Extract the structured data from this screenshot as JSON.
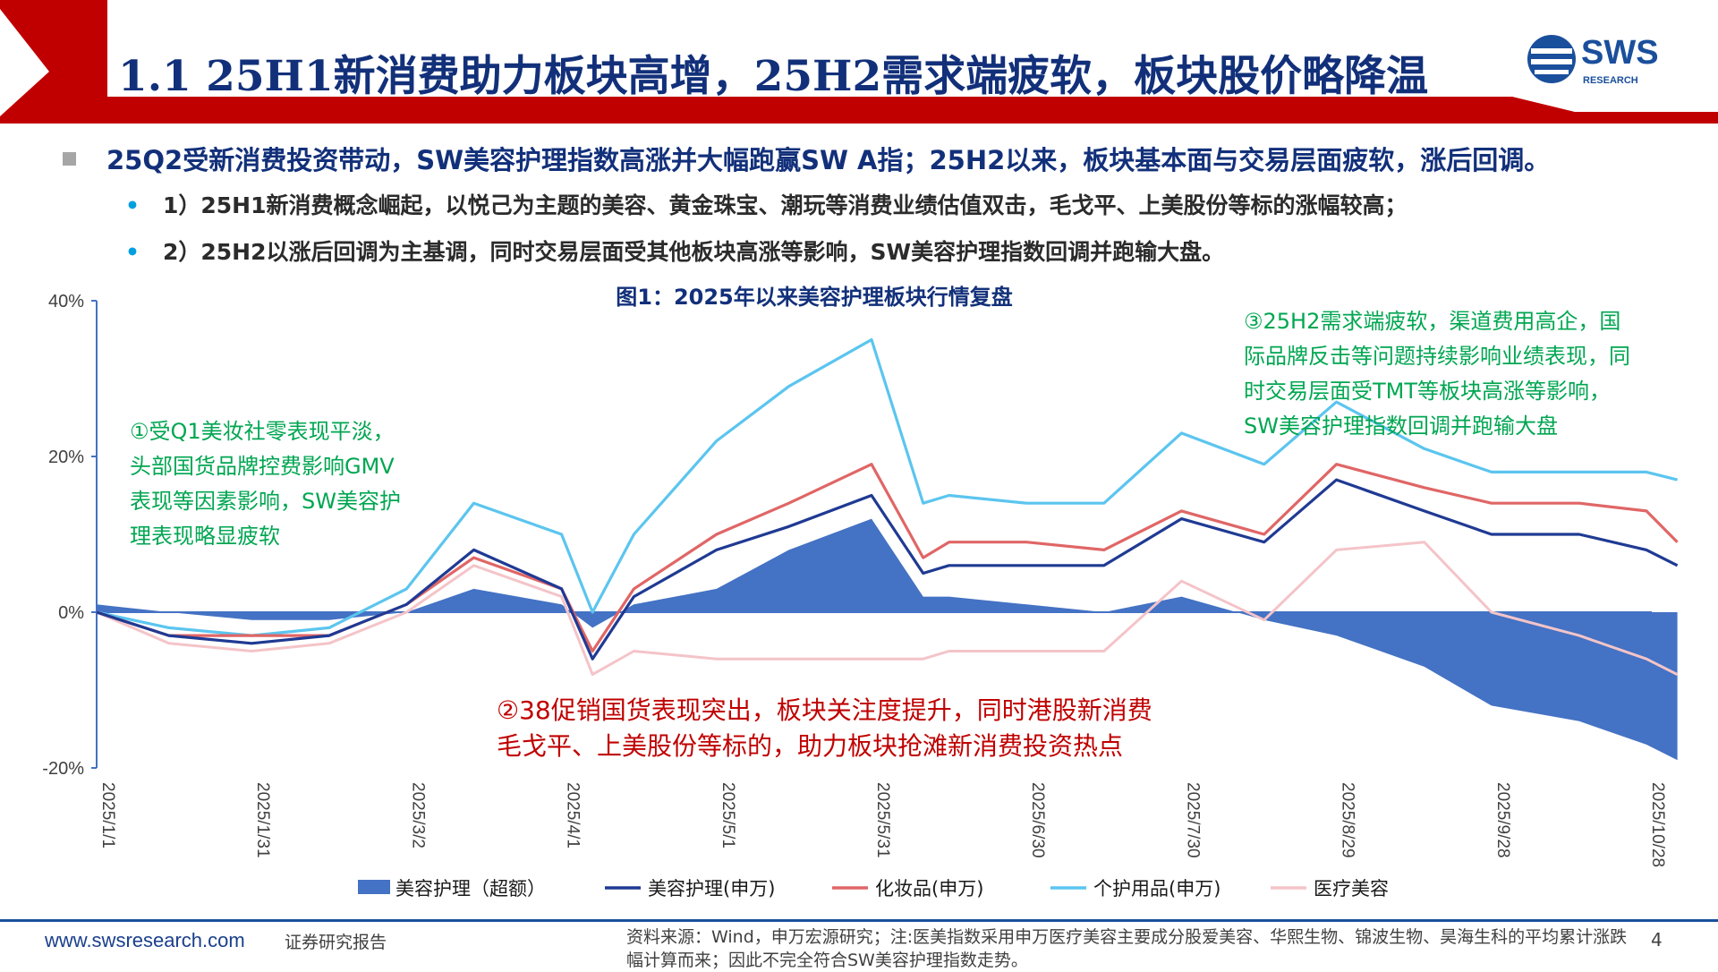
{
  "header": {
    "title": "1.1 25H1新消费助力板块高增，25H2需求端疲软，板块股价略降温",
    "logo_word": "SWS",
    "logo_sub": "RESEARCH"
  },
  "bullets": {
    "main": "25Q2受新消费投资带动，SW美容护理指数高涨并大幅跑赢SW A指；25H2以来，板块基本面与交易层面疲软，涨后回调。",
    "sub1": "1）25H1新消费概念崛起，以悦己为主题的美容、黄金珠宝、潮玩等消费业绩估值双击，毛戈平、上美股份等标的涨幅较高；",
    "sub2": "2）25H2以涨后回调为主基调，同时交易层面受其他板块高涨等影响，SW美容护理指数回调并跑输大盘。",
    "bullet_glyph": "•"
  },
  "annotations": {
    "a1": [
      "①受Q1美妆社零表现平淡，",
      "头部国货品牌控费影响GMV",
      "表现等因素影响，SW美容护",
      "理表现略显疲软"
    ],
    "a2": [
      "②38促销国货表现突出，板块关注度提升，同时港股新消费",
      "毛戈平、上美股份等标的，助力板块抢滩新消费投资热点"
    ],
    "a3": [
      "③25H2需求端疲软，渠道费用高企，国",
      "际品牌反击等问题持续影响业绩表现，同",
      "时交易层面受TMT等板块高涨等影响，",
      "SW美容护理指数回调并跑输大盘"
    ]
  },
  "footer": {
    "site": "www.swsresearch.com",
    "report": "证券研究报告",
    "source": "资料来源：Wind，申万宏源研究；注:医美指数采用申万医疗美容主要成分股爱美容、华熙生物、锦波生物、昊海生科的平均累计涨跌幅计算而来；因此不完全符合SW美容护理指数走势。",
    "page": "4"
  },
  "colors": {
    "excess": "#4472c4",
    "beauty": "#1f3a93",
    "cosmetics": "#e06666",
    "personal": "#5bc5ef",
    "medical": "#f4c4c8",
    "title": "#12307a",
    "banner": "#c00000"
  },
  "chart_data": {
    "type": "line",
    "title": "图1：2025年以来美容护理板块行情复盘",
    "y_unit": "%",
    "ylim": [
      -20,
      40
    ],
    "yticks": [
      40,
      20,
      0,
      -20
    ],
    "ytick_labels": [
      "40%",
      "20%",
      "0%",
      "-20%"
    ],
    "xticks": [
      "2025/1/1",
      "2025/1/31",
      "2025/3/2",
      "2025/4/1",
      "2025/5/1",
      "2025/5/31",
      "2025/6/30",
      "2025/7/30",
      "2025/8/29",
      "2025/9/28",
      "2025/10/28"
    ],
    "x": [
      "2025/1/1",
      "2025/1/15",
      "2025/1/31",
      "2025/2/15",
      "2025/3/2",
      "2025/3/15",
      "2025/4/1",
      "2025/4/7",
      "2025/4/15",
      "2025/5/1",
      "2025/5/15",
      "2025/5/31",
      "2025/6/10",
      "2025/6/15",
      "2025/6/30",
      "2025/7/15",
      "2025/7/30",
      "2025/8/15",
      "2025/8/29",
      "2025/9/15",
      "2025/9/28",
      "2025/10/15",
      "2025/10/28",
      "2025/11/3"
    ],
    "series": [
      {
        "name": "美容护理（超额）",
        "kind": "area",
        "values": [
          1,
          0,
          -1,
          -1,
          0,
          3,
          1,
          -2,
          1,
          3,
          8,
          12,
          2,
          2,
          1,
          0,
          2,
          -1,
          -3,
          -7,
          -12,
          -14,
          -17,
          -19
        ]
      },
      {
        "name": "美容护理(申万)",
        "kind": "line",
        "values": [
          0,
          -3,
          -4,
          -3,
          1,
          8,
          3,
          -6,
          2,
          8,
          11,
          15,
          5,
          6,
          6,
          6,
          12,
          9,
          17,
          13,
          10,
          10,
          8,
          6
        ]
      },
      {
        "name": "化妆品(申万)",
        "kind": "line",
        "values": [
          0,
          -3,
          -3,
          -3,
          1,
          7,
          3,
          -5,
          3,
          10,
          14,
          19,
          7,
          9,
          9,
          8,
          13,
          10,
          19,
          16,
          14,
          14,
          13,
          9
        ]
      },
      {
        "name": "个护用品(申万)",
        "kind": "line",
        "values": [
          0,
          -2,
          -3,
          -2,
          3,
          14,
          10,
          0,
          10,
          22,
          29,
          35,
          14,
          15,
          14,
          14,
          23,
          19,
          27,
          21,
          18,
          18,
          18,
          17
        ]
      },
      {
        "name": "医疗美容",
        "kind": "line",
        "values": [
          0,
          -4,
          -5,
          -4,
          0,
          6,
          2,
          -8,
          -5,
          -6,
          -6,
          -6,
          -6,
          -5,
          -5,
          -5,
          4,
          -1,
          8,
          9,
          0,
          -3,
          -6,
          -8
        ]
      }
    ]
  }
}
